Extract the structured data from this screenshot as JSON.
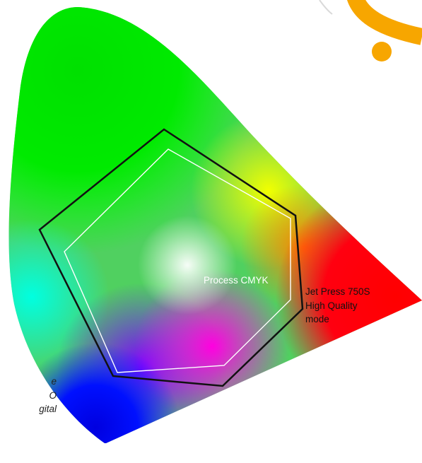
{
  "diagram": {
    "title": "",
    "labels": {
      "process_cmyk": "Process CMYK",
      "jet_press": [
        "Jet Press 750S",
        "High Quality",
        "mode"
      ],
      "cropped_left_text": [
        "e",
        "O",
        "gital"
      ]
    },
    "colors": {
      "gamut_jet_press": "#111111",
      "gamut_cmyk": "#ffffff",
      "accent_arc": "#f7a600",
      "accent_thin_arc": "#d9d9d9"
    }
  }
}
